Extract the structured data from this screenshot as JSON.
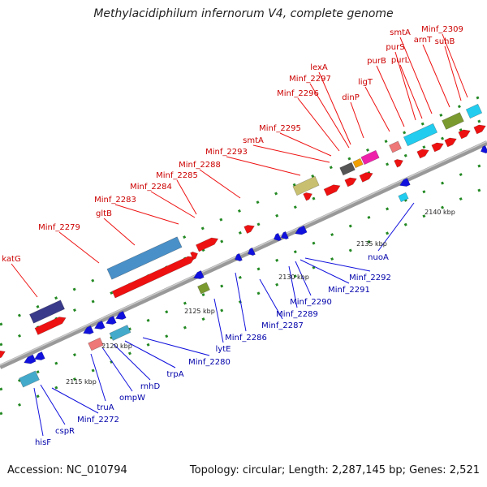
{
  "title": "Methylacidiphilum infernorum V4, complete genome",
  "accession": "Accession: NC_010794",
  "summary": "Topology: circular; Length: 2,287,145 bp; Genes: 2,521",
  "colors": {
    "forward_cds": "#ee1111",
    "reverse_cds": "#1111dd",
    "forward_label": "#cc0000",
    "reverse_label": "#0000aa",
    "backbone": "#888888",
    "tick": "#228822",
    "cog_blue": "#4a90c8",
    "cog_navy": "#3a3a8a",
    "cog_olive": "#7a9a30",
    "cog_khaki": "#c8c070",
    "cog_cyan": "#22ccee",
    "cog_salmon": "#ee7777",
    "cog_magenta": "#ee22aa",
    "cog_teal": "#44aacc"
  },
  "scale_labels": [
    "2115 kbp",
    "2120 kbp",
    "2125 kbp",
    "2130 kbp",
    "2135 kbp",
    "2140 kbp"
  ],
  "forward_genes": [
    "katG",
    "Minf_2279",
    "gltB",
    "Minf_2283",
    "Minf_2284",
    "Minf_2285",
    "Minf_2288",
    "Minf_2293",
    "smtA",
    "Minf_2295",
    "Minf_2296",
    "Minf_2297",
    "lexA",
    "dinP",
    "ligT",
    "purB",
    "purS",
    "purL",
    "smtA",
    "arnT",
    "Minf_2309",
    "suhB"
  ],
  "reverse_genes": [
    "hisF",
    "cspR",
    "Minf_2272",
    "truA",
    "ompW",
    "rnhD",
    "trpA",
    "Minf_2280",
    "lytE",
    "Minf_2286",
    "Minf_2287",
    "Minf_2289",
    "Minf_2290",
    "Minf_2291",
    "Minf_2292",
    "nuoA"
  ]
}
